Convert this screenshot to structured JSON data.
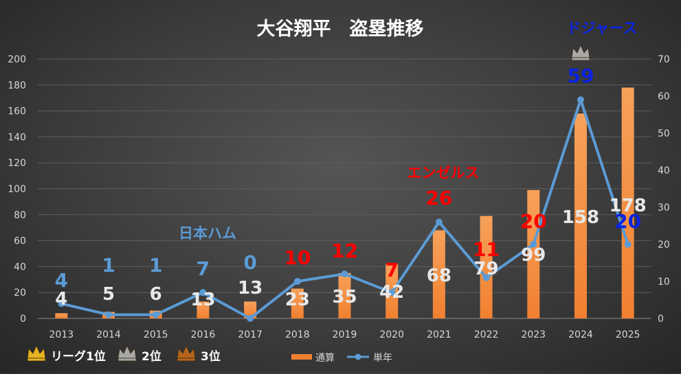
{
  "chart_data": {
    "type": "bar",
    "title": "大谷翔平　盗塁推移",
    "categories": [
      "2013",
      "2014",
      "2015",
      "2016",
      "2017",
      "2018",
      "2019",
      "2020",
      "2021",
      "2022",
      "2023",
      "2024",
      "2025"
    ],
    "series": [
      {
        "name": "通算",
        "axis": "left",
        "kind": "bar",
        "color": "#f08030",
        "values": [
          4,
          5,
          6,
          13,
          13,
          23,
          35,
          42,
          68,
          79,
          99,
          158,
          178
        ],
        "labels": [
          "4",
          "5",
          "6",
          "13",
          "13",
          "23",
          "35",
          "42",
          "68",
          "79",
          "99",
          "158",
          "178"
        ]
      },
      {
        "name": "単年",
        "axis": "right",
        "kind": "line",
        "color": "#5b9bd5",
        "values": [
          4,
          1,
          1,
          7,
          0,
          10,
          12,
          7,
          26,
          11,
          20,
          59,
          20
        ],
        "labels": [
          "4",
          "1",
          "1",
          "7",
          "0",
          "10",
          "12",
          "7",
          "26",
          "11",
          "20",
          "59",
          "20"
        ],
        "label_colors": [
          "#5b9bd5",
          "#5b9bd5",
          "#5b9bd5",
          "#5b9bd5",
          "#5b9bd5",
          "#ff0000",
          "#ff0000",
          "#ff0000",
          "#ff0000",
          "#ff0000",
          "#ff0000",
          "#0a22e0",
          "#0a22e0"
        ]
      }
    ],
    "ylim_left": [
      0,
      200
    ],
    "yticks_left": [
      0,
      20,
      40,
      60,
      80,
      100,
      120,
      140,
      160,
      180,
      200
    ],
    "ylim_right": [
      0,
      70
    ],
    "yticks_right": [
      0,
      10,
      20,
      30,
      40,
      50,
      60,
      70
    ],
    "grid": true,
    "legend_position": "bottom-center",
    "annotations": {
      "nippon_ham": {
        "text": "日本ハム",
        "color": "#5b9bd5"
      },
      "angels": {
        "text": "エンゼルス",
        "color": "#ff0000"
      },
      "dodgers": {
        "text": "ドジャース",
        "color": "#0a22e0"
      }
    },
    "crowns": [
      {
        "year": "2024",
        "rank": "2位"
      }
    ]
  },
  "crown_legend": [
    {
      "label": "リーグ1位",
      "color": "#e6b422"
    },
    {
      "label": "2位",
      "color": "#a8a8a8"
    },
    {
      "label": "3位",
      "color": "#b5651d"
    }
  ]
}
